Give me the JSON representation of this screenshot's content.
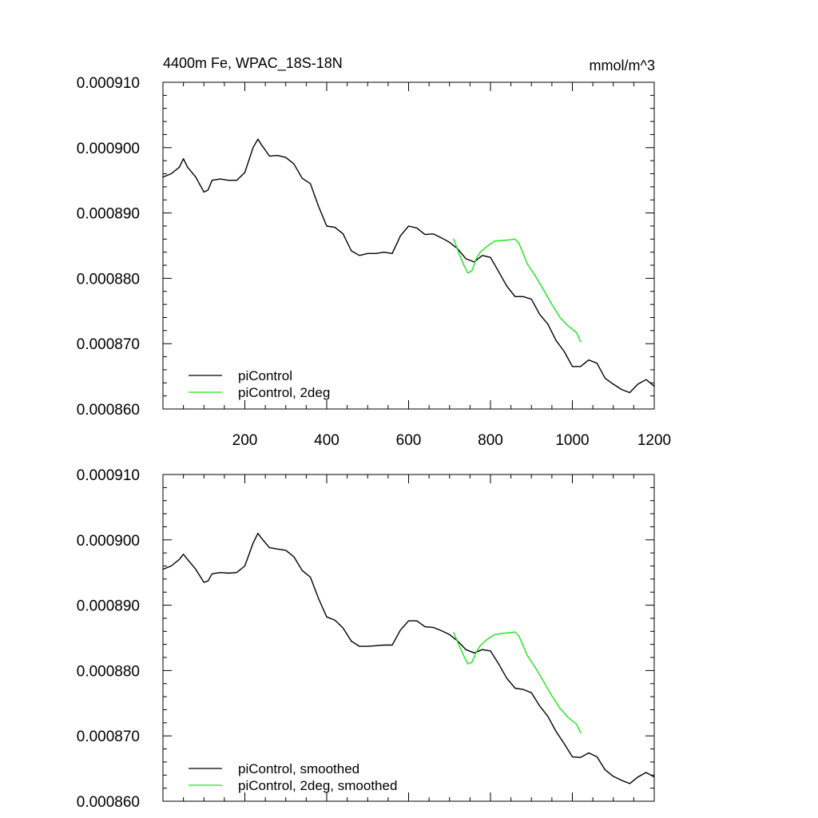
{
  "colors": {
    "control": "#000000",
    "deg2": "#19e619",
    "axis": "#000000",
    "background": "#ffffff"
  },
  "chart_data": [
    {
      "type": "line",
      "title": "4400m Fe, WPAC_18S-18N",
      "units": "mmol/m^3",
      "xlim": [
        0,
        1200
      ],
      "ylim": [
        0.00086,
        0.00091
      ],
      "xticks": [
        200,
        400,
        600,
        800,
        1000,
        1200
      ],
      "xtick_labels": [
        "200",
        "400",
        "600",
        "800",
        "1000",
        "1200"
      ],
      "yticks": [
        0.00086,
        0.00087,
        0.00088,
        0.00089,
        0.0009,
        0.00091
      ],
      "ytick_labels": [
        "0.000860",
        "0.000870",
        "0.000880",
        "0.000890",
        "0.000900",
        "0.000910"
      ],
      "legend_position": "bottom-left",
      "series": [
        {
          "name": "piControl",
          "color": "#000000",
          "x": [
            0,
            20,
            40,
            50,
            60,
            80,
            100,
            110,
            120,
            140,
            160,
            180,
            200,
            220,
            232,
            240,
            260,
            280,
            300,
            320,
            340,
            360,
            380,
            400,
            420,
            440,
            460,
            480,
            500,
            520,
            540,
            560,
            580,
            600,
            620,
            640,
            660,
            680,
            700,
            720,
            740,
            760,
            780,
            800,
            820,
            840,
            860,
            880,
            900,
            920,
            940,
            960,
            980,
            1000,
            1020,
            1040,
            1060,
            1080,
            1100,
            1120,
            1140,
            1160,
            1180,
            1200
          ],
          "y": [
            0.0008955,
            0.000896,
            0.000897,
            0.0008983,
            0.000897,
            0.0008955,
            0.0008932,
            0.0008935,
            0.000895,
            0.0008952,
            0.000895,
            0.000895,
            0.0008962,
            0.0009,
            0.0009013,
            0.0009005,
            0.0008987,
            0.0008988,
            0.0008985,
            0.0008975,
            0.0008953,
            0.0008945,
            0.000891,
            0.000888,
            0.0008878,
            0.0008868,
            0.0008842,
            0.0008835,
            0.0008838,
            0.0008838,
            0.000884,
            0.0008838,
            0.0008865,
            0.000888,
            0.0008877,
            0.0008867,
            0.0008868,
            0.0008862,
            0.0008855,
            0.0008845,
            0.000883,
            0.0008825,
            0.0008835,
            0.0008832,
            0.000881,
            0.0008788,
            0.0008772,
            0.0008772,
            0.0008768,
            0.0008745,
            0.000873,
            0.0008705,
            0.0008688,
            0.0008665,
            0.0008665,
            0.0008675,
            0.000867,
            0.0008647,
            0.0008638,
            0.000863,
            0.0008625,
            0.0008638,
            0.0008645,
            0.0008635
          ]
        },
        {
          "name": "piControl, 2deg",
          "color": "#19e619",
          "x": [
            710,
            725,
            735,
            745,
            755,
            765,
            775,
            790,
            810,
            830,
            850,
            860,
            870,
            890,
            910,
            930,
            950,
            970,
            990,
            1010,
            1020
          ],
          "y": [
            0.000886,
            0.0008835,
            0.000882,
            0.0008808,
            0.0008812,
            0.000883,
            0.000884,
            0.0008848,
            0.0008857,
            0.0008858,
            0.0008859,
            0.000886,
            0.0008853,
            0.0008822,
            0.0008803,
            0.0008782,
            0.000876,
            0.000874,
            0.0008727,
            0.0008717,
            0.0008703
          ]
        }
      ]
    },
    {
      "type": "line",
      "xlim": [
        0,
        1200
      ],
      "ylim": [
        0.00086,
        0.00091
      ],
      "yticks": [
        0.00086,
        0.00087,
        0.00088,
        0.00089,
        0.0009,
        0.00091
      ],
      "ytick_labels": [
        "0.000860",
        "0.000870",
        "0.000880",
        "0.000890",
        "0.000900",
        "0.000910"
      ],
      "legend_position": "bottom-left",
      "series": [
        {
          "name": "piControl, smoothed",
          "color": "#000000",
          "x": [
            0,
            20,
            40,
            50,
            60,
            80,
            100,
            110,
            120,
            140,
            160,
            180,
            200,
            220,
            232,
            240,
            260,
            280,
            300,
            320,
            340,
            360,
            380,
            400,
            420,
            440,
            460,
            480,
            500,
            520,
            540,
            560,
            580,
            600,
            620,
            640,
            660,
            680,
            700,
            720,
            740,
            760,
            780,
            800,
            820,
            840,
            860,
            880,
            900,
            920,
            940,
            960,
            980,
            1000,
            1020,
            1040,
            1060,
            1080,
            1100,
            1120,
            1140,
            1160,
            1180,
            1200
          ],
          "y": [
            0.0008955,
            0.000896,
            0.000897,
            0.0008978,
            0.000897,
            0.0008955,
            0.0008935,
            0.0008937,
            0.0008948,
            0.000895,
            0.0008949,
            0.000895,
            0.000896,
            0.0008995,
            0.000901,
            0.0009003,
            0.0008988,
            0.0008986,
            0.0008984,
            0.0008974,
            0.0008953,
            0.0008943,
            0.000891,
            0.0008882,
            0.0008877,
            0.0008865,
            0.0008845,
            0.0008837,
            0.0008837,
            0.0008838,
            0.0008839,
            0.0008839,
            0.0008862,
            0.0008876,
            0.0008876,
            0.0008867,
            0.0008866,
            0.0008861,
            0.0008855,
            0.0008845,
            0.0008832,
            0.0008827,
            0.0008832,
            0.000883,
            0.000881,
            0.0008788,
            0.0008773,
            0.0008771,
            0.0008766,
            0.0008746,
            0.000873,
            0.0008707,
            0.0008688,
            0.0008668,
            0.0008667,
            0.0008674,
            0.0008668,
            0.0008648,
            0.0008638,
            0.0008632,
            0.0008627,
            0.0008637,
            0.0008644,
            0.0008637
          ]
        },
        {
          "name": "piControl, 2deg, smoothed",
          "color": "#19e619",
          "x": [
            710,
            725,
            735,
            745,
            755,
            765,
            775,
            790,
            810,
            830,
            850,
            860,
            870,
            890,
            910,
            930,
            950,
            970,
            990,
            1010,
            1020
          ],
          "y": [
            0.0008858,
            0.0008836,
            0.0008822,
            0.000881,
            0.0008813,
            0.0008828,
            0.0008838,
            0.0008847,
            0.0008855,
            0.0008857,
            0.0008858,
            0.0008859,
            0.0008852,
            0.0008823,
            0.0008804,
            0.0008783,
            0.0008761,
            0.0008742,
            0.0008728,
            0.0008718,
            0.0008705
          ]
        }
      ]
    }
  ]
}
